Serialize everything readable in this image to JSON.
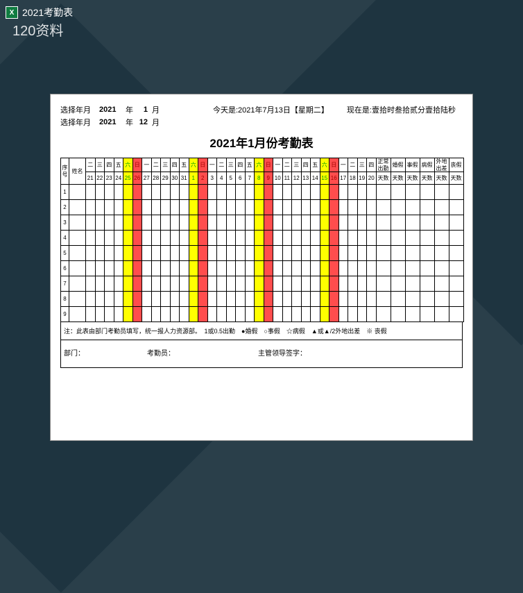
{
  "titlebar": {
    "filename": "2021考勤表"
  },
  "watermark": "120资料",
  "header": {
    "select_label": "选择年月",
    "year1": "2021",
    "year_unit": "年",
    "month1": "1",
    "month_unit": "月",
    "year2": "2021",
    "month2": "12",
    "today": "今天是:2021年7月13日【星期二】",
    "now": "现在是:壹拾时叁拾贰分壹拾陆秒",
    "title": "2021年1月份考勤表"
  },
  "columns": {
    "seq": "序号",
    "name": "姓名",
    "summary": [
      "正常出勤",
      "婚假",
      "事假",
      "病假",
      "外地出差",
      "丧假"
    ],
    "summary_unit": "天数"
  },
  "days": [
    {
      "w": "二",
      "d": "21"
    },
    {
      "w": "三",
      "d": "22"
    },
    {
      "w": "四",
      "d": "23"
    },
    {
      "w": "五",
      "d": "24"
    },
    {
      "w": "六",
      "d": "25",
      "sat": true
    },
    {
      "w": "日",
      "d": "26",
      "sun": true
    },
    {
      "w": "一",
      "d": "27"
    },
    {
      "w": "二",
      "d": "28"
    },
    {
      "w": "三",
      "d": "29"
    },
    {
      "w": "四",
      "d": "30"
    },
    {
      "w": "五",
      "d": "31"
    },
    {
      "w": "六",
      "d": "1",
      "sat": true
    },
    {
      "w": "日",
      "d": "2",
      "sun": true
    },
    {
      "w": "一",
      "d": "3"
    },
    {
      "w": "二",
      "d": "4"
    },
    {
      "w": "三",
      "d": "5"
    },
    {
      "w": "四",
      "d": "6"
    },
    {
      "w": "五",
      "d": "7"
    },
    {
      "w": "六",
      "d": "8",
      "sat": true
    },
    {
      "w": "日",
      "d": "9",
      "sun": true
    },
    {
      "w": "一",
      "d": "10"
    },
    {
      "w": "二",
      "d": "11"
    },
    {
      "w": "三",
      "d": "12"
    },
    {
      "w": "四",
      "d": "13"
    },
    {
      "w": "五",
      "d": "14"
    },
    {
      "w": "六",
      "d": "15",
      "sat": true
    },
    {
      "w": "日",
      "d": "16",
      "sun": true
    },
    {
      "w": "一",
      "d": "17"
    },
    {
      "w": "二",
      "d": "18"
    },
    {
      "w": "三",
      "d": "19"
    },
    {
      "w": "四",
      "d": "20"
    }
  ],
  "rows": [
    1,
    2,
    3,
    4,
    5,
    6,
    7,
    8,
    9
  ],
  "notes": "注：此表由部门考勤员填写，统一报人力资源部。　1或0.5出勤　●婚假　○事假　☆病假　▲或▲/2外地出差　※ 丧假",
  "sign": {
    "dept": "部门：",
    "clerk": "考勤员：",
    "leader": "主管领导签字："
  },
  "colors": {
    "sat_bg": "#ffff00",
    "sat_fg": "#00a000",
    "sun_bg": "#ff4d4d",
    "sun_fg": "#a00000",
    "sheet_bg": "#ffffff",
    "page_bg": "#2a3f4a"
  }
}
